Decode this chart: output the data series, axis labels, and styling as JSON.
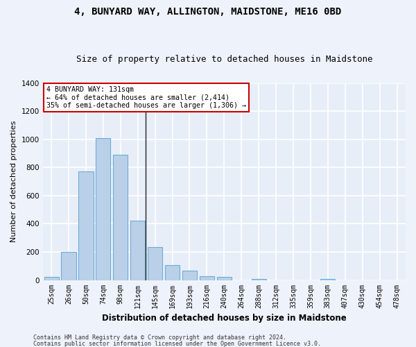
{
  "title": "4, BUNYARD WAY, ALLINGTON, MAIDSTONE, ME16 0BD",
  "subtitle": "Size of property relative to detached houses in Maidstone",
  "xlabel": "Distribution of detached houses by size in Maidstone",
  "ylabel": "Number of detached properties",
  "categories": [
    "25sqm",
    "26sqm",
    "50sqm",
    "74sqm",
    "98sqm",
    "121sqm",
    "145sqm",
    "169sqm",
    "193sqm",
    "216sqm",
    "240sqm",
    "264sqm",
    "288sqm",
    "312sqm",
    "335sqm",
    "359sqm",
    "383sqm",
    "407sqm",
    "430sqm",
    "454sqm",
    "478sqm"
  ],
  "bar_values": [
    20,
    200,
    770,
    1010,
    890,
    420,
    235,
    107,
    68,
    25,
    20,
    0,
    10,
    0,
    0,
    0,
    10,
    0,
    0,
    0,
    0
  ],
  "bar_color": "#bad0e8",
  "bar_edge_color": "#6aacd8",
  "annotation_text": "4 BUNYARD WAY: 131sqm\n← 64% of detached houses are smaller (2,414)\n35% of semi-detached houses are larger (1,306) →",
  "annotation_box_color": "#ffffff",
  "annotation_box_edge": "#cc0000",
  "footer_line1": "Contains HM Land Registry data © Crown copyright and database right 2024.",
  "footer_line2": "Contains public sector information licensed under the Open Government Licence v3.0.",
  "ylim": [
    0,
    1400
  ],
  "background_color": "#e8eef8",
  "fig_background_color": "#eef3fb",
  "grid_color": "#ffffff",
  "title_fontsize": 10,
  "subtitle_fontsize": 9,
  "tick_label_fontsize": 7,
  "ylabel_fontsize": 8,
  "xlabel_fontsize": 8.5
}
